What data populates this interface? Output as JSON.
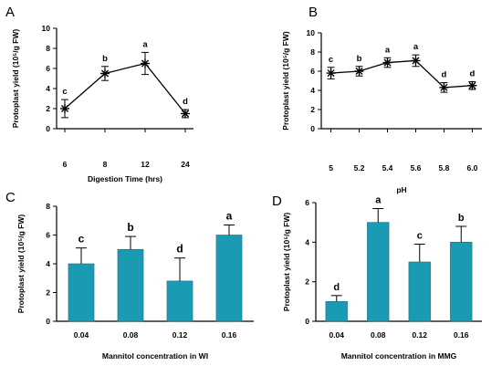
{
  "chart_data": [
    {
      "panel": "A",
      "type": "line",
      "xlabel": "Digestion Time (hrs)",
      "ylabel": "Protoplast yield (10⁵/g FW)",
      "ylim": [
        0,
        10
      ],
      "yticks": [
        "0",
        "2",
        "4",
        "6",
        "8",
        "10"
      ],
      "categories": [
        "6",
        "8",
        "12",
        "24"
      ],
      "values": [
        2.0,
        5.5,
        6.5,
        1.5
      ],
      "errors": [
        0.9,
        0.7,
        1.1,
        0.4
      ],
      "letters": [
        "c",
        "b",
        "a",
        "d"
      ],
      "grid": false
    },
    {
      "panel": "B",
      "type": "line",
      "xlabel": "pH",
      "ylabel": "Protoplast yield (10⁵/g FW)",
      "ylim": [
        0,
        10
      ],
      "yticks": [
        "0",
        "2",
        "4",
        "6",
        "8",
        "10"
      ],
      "categories": [
        "5",
        "5.2",
        "5.4",
        "5.6",
        "5.8",
        "6.0"
      ],
      "values": [
        5.8,
        6.0,
        6.9,
        7.1,
        4.3,
        4.5
      ],
      "errors": [
        0.6,
        0.5,
        0.5,
        0.6,
        0.5,
        0.4
      ],
      "letters": [
        "c",
        "b",
        "a",
        "a",
        "d",
        "d"
      ],
      "grid": false
    },
    {
      "panel": "C",
      "type": "bar",
      "xlabel": "Mannitol concentration in WI",
      "ylabel": "Protoplast yield (10⁵/g FW)",
      "ylim": [
        0,
        8
      ],
      "yticks": [
        "0",
        "2",
        "4",
        "6",
        "8"
      ],
      "categories": [
        "0.04",
        "0.08",
        "0.12",
        "0.16"
      ],
      "values": [
        4.0,
        5.0,
        2.8,
        6.0
      ],
      "errors": [
        1.1,
        0.9,
        1.6,
        0.7
      ],
      "letters": [
        "c",
        "b",
        "d",
        "a"
      ],
      "bar_color": "#1b9bb3",
      "grid": false
    },
    {
      "panel": "D",
      "type": "bar",
      "xlabel": "Mannitol concentration in MMG",
      "ylabel": "Protoplast yield (10⁵/g FW)",
      "ylim": [
        0,
        6
      ],
      "yticks": [
        "0",
        "2",
        "4",
        "6"
      ],
      "categories": [
        "0.04",
        "0.08",
        "0.12",
        "0.16"
      ],
      "values": [
        1.0,
        5.0,
        3.0,
        4.0
      ],
      "errors": [
        0.3,
        0.7,
        0.9,
        0.8
      ],
      "letters": [
        "d",
        "a",
        "c",
        "b"
      ],
      "bar_color": "#1b9bb3",
      "grid": false
    }
  ]
}
